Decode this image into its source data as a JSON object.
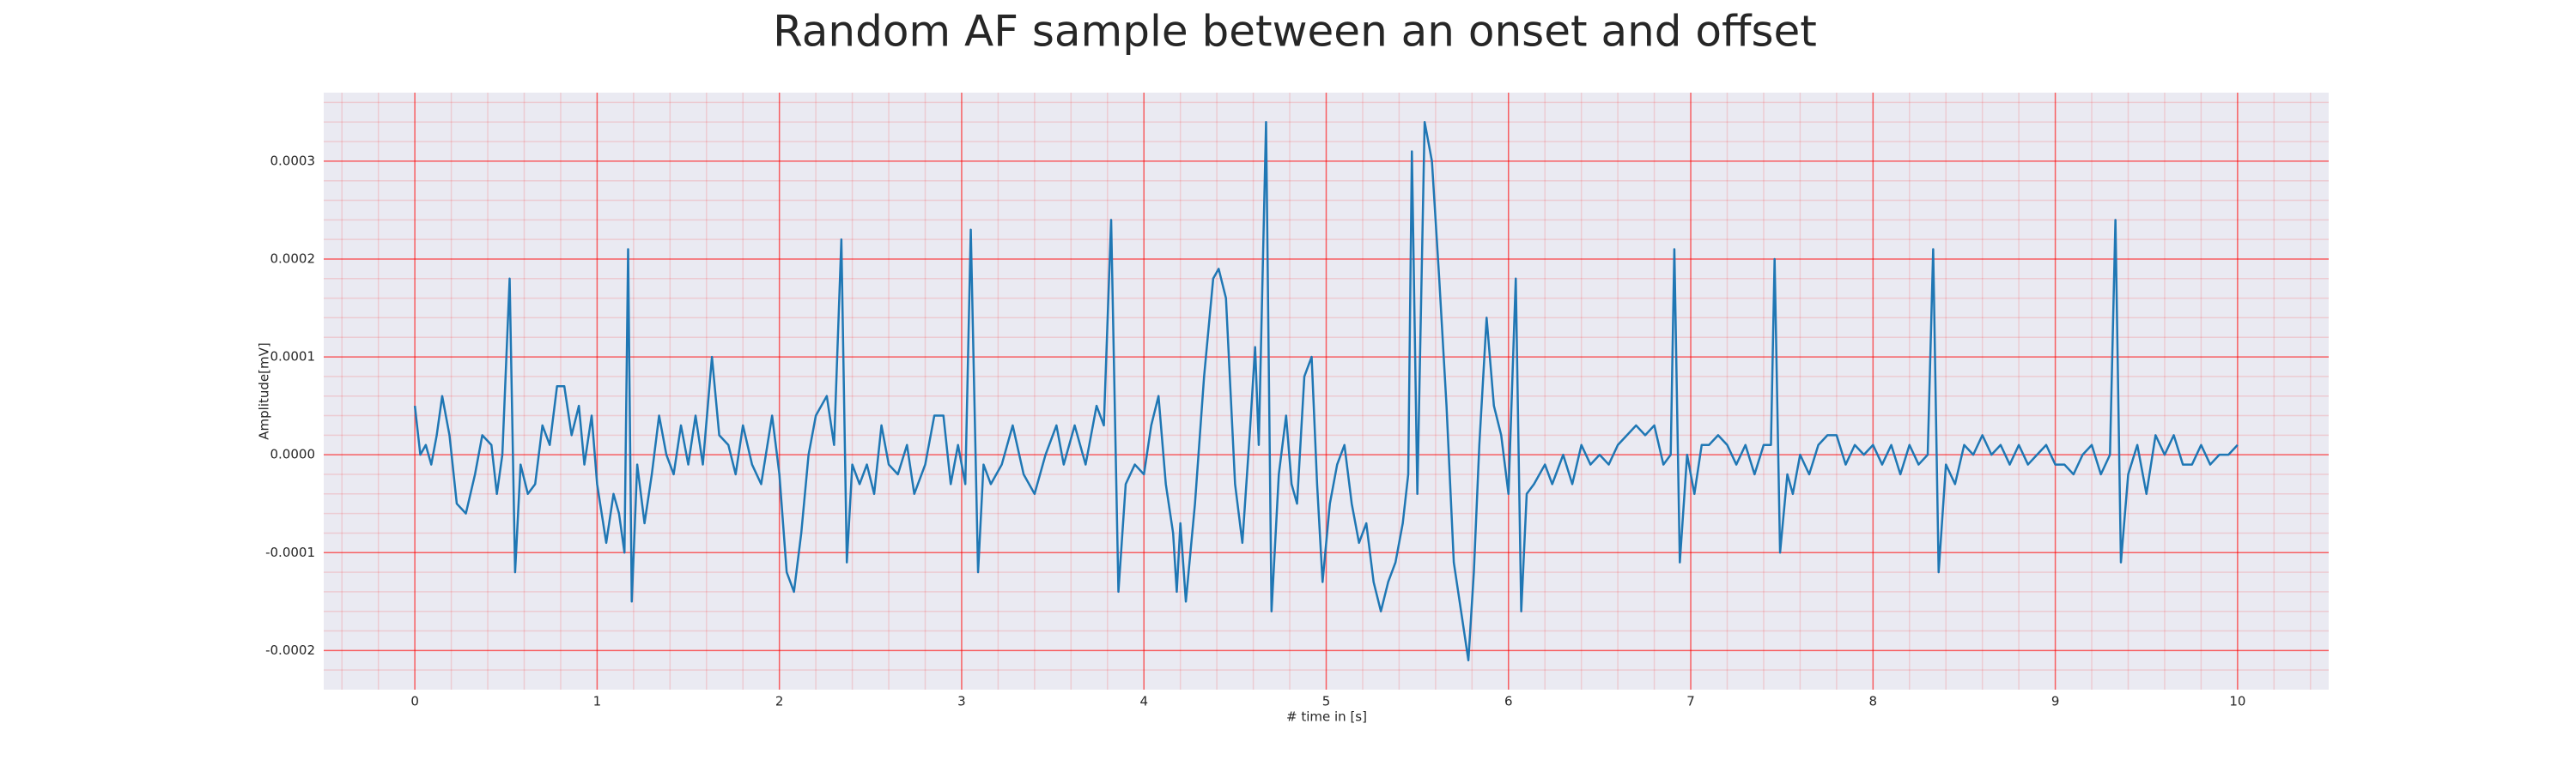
{
  "chart_data": {
    "type": "line",
    "title": "Random AF sample between an onset and offset",
    "xlabel": "# time in [s]",
    "ylabel": "Amplitude[mV]",
    "xlim": [
      -0.5,
      10.5
    ],
    "ylim": [
      -0.00024,
      0.00037
    ],
    "xticks": [
      0,
      1,
      2,
      3,
      4,
      5,
      6,
      7,
      8,
      9,
      10
    ],
    "yticks": [
      -0.0002,
      -0.0001,
      {
        "value": 0,
        "label": "0.0000"
      },
      0.0001,
      0.0002,
      0.0003
    ],
    "grid": true,
    "minor_grid": true,
    "background": "#eaeaf2",
    "grid_color": "#ff0000",
    "series": [
      {
        "color": "#1f77b4",
        "x": [
          0,
          0.03,
          0.06,
          0.09,
          0.12,
          0.15,
          0.19,
          0.23,
          0.28,
          0.33,
          0.37,
          0.42,
          0.45,
          0.48,
          0.52,
          0.55,
          0.58,
          0.62,
          0.66,
          0.7,
          0.74,
          0.78,
          0.82,
          0.86,
          0.9,
          0.93,
          0.97,
          1.0,
          1.05,
          1.09,
          1.12,
          1.15,
          1.17,
          1.19,
          1.22,
          1.26,
          1.3,
          1.34,
          1.38,
          1.42,
          1.46,
          1.5,
          1.54,
          1.58,
          1.63,
          1.67,
          1.72,
          1.76,
          1.8,
          1.85,
          1.9,
          1.96,
          2.0,
          2.04,
          2.08,
          2.12,
          2.16,
          2.2,
          2.26,
          2.3,
          2.34,
          2.37,
          2.4,
          2.44,
          2.48,
          2.52,
          2.56,
          2.6,
          2.65,
          2.7,
          2.74,
          2.8,
          2.85,
          2.9,
          2.94,
          2.98,
          3.02,
          3.05,
          3.09,
          3.12,
          3.16,
          3.22,
          3.28,
          3.34,
          3.4,
          3.46,
          3.52,
          3.56,
          3.62,
          3.68,
          3.74,
          3.78,
          3.82,
          3.86,
          3.9,
          3.95,
          4.0,
          4.04,
          4.08,
          4.12,
          4.16,
          4.18,
          4.2,
          4.23,
          4.28,
          4.33,
          4.38,
          4.41,
          4.45,
          4.5,
          4.54,
          4.58,
          4.61,
          4.63,
          4.67,
          4.7,
          4.74,
          4.78,
          4.81,
          4.84,
          4.88,
          4.92,
          4.95,
          4.98,
          5.02,
          5.06,
          5.1,
          5.14,
          5.18,
          5.22,
          5.26,
          5.3,
          5.34,
          5.38,
          5.42,
          5.45,
          5.47,
          5.5,
          5.54,
          5.58,
          5.62,
          5.66,
          5.7,
          5.74,
          5.78,
          5.81,
          5.84,
          5.88,
          5.92,
          5.96,
          6.0,
          6.04,
          6.07,
          6.1,
          6.14,
          6.2,
          6.24,
          6.3,
          6.35,
          6.4,
          6.45,
          6.5,
          6.55,
          6.6,
          6.65,
          6.7,
          6.75,
          6.8,
          6.85,
          6.89,
          6.91,
          6.94,
          6.98,
          7.02,
          7.06,
          7.1,
          7.15,
          7.2,
          7.25,
          7.3,
          7.35,
          7.4,
          7.44,
          7.46,
          7.49,
          7.53,
          7.56,
          7.6,
          7.65,
          7.7,
          7.75,
          7.8,
          7.85,
          7.9,
          7.95,
          8.0,
          8.05,
          8.1,
          8.15,
          8.2,
          8.25,
          8.3,
          8.33,
          8.36,
          8.4,
          8.45,
          8.5,
          8.55,
          8.6,
          8.65,
          8.7,
          8.75,
          8.8,
          8.85,
          8.9,
          8.95,
          9.0,
          9.05,
          9.1,
          9.15,
          9.2,
          9.25,
          9.3,
          9.33,
          9.36,
          9.4,
          9.45,
          9.5,
          9.55,
          9.6,
          9.65,
          9.7,
          9.75,
          9.8,
          9.85,
          9.9,
          9.95,
          10.0
        ],
        "values": [
          5e-05,
          0,
          1e-05,
          -1e-05,
          2e-05,
          6e-05,
          2e-05,
          -5e-05,
          -6e-05,
          -2e-05,
          2e-05,
          1e-05,
          -4e-05,
          0,
          0.00018,
          -0.00012,
          -1e-05,
          -4e-05,
          -3e-05,
          3e-05,
          1e-05,
          7e-05,
          7e-05,
          2e-05,
          5e-05,
          -1e-05,
          4e-05,
          -3e-05,
          -9e-05,
          -4e-05,
          -6e-05,
          -0.0001,
          0.00021,
          -0.00015,
          -1e-05,
          -7e-05,
          -2e-05,
          4e-05,
          0,
          -2e-05,
          3e-05,
          -1e-05,
          4e-05,
          -1e-05,
          0.0001,
          2e-05,
          1e-05,
          -2e-05,
          3e-05,
          -1e-05,
          -3e-05,
          4e-05,
          -2e-05,
          -0.00012,
          -0.00014,
          -8e-05,
          0,
          4e-05,
          6e-05,
          1e-05,
          0.00022,
          -0.00011,
          -1e-05,
          -3e-05,
          -1e-05,
          -4e-05,
          3e-05,
          -1e-05,
          -2e-05,
          1e-05,
          -4e-05,
          -1e-05,
          4e-05,
          4e-05,
          -3e-05,
          1e-05,
          -3e-05,
          0.00023,
          -0.00012,
          -1e-05,
          -3e-05,
          -1e-05,
          3e-05,
          -2e-05,
          -4e-05,
          0,
          3e-05,
          -1e-05,
          3e-05,
          -1e-05,
          5e-05,
          3e-05,
          0.00024,
          -0.00014,
          -3e-05,
          -1e-05,
          -2e-05,
          3e-05,
          6e-05,
          -3e-05,
          -8e-05,
          -0.00014,
          -7e-05,
          -0.00015,
          -5e-05,
          8e-05,
          0.00018,
          0.00019,
          0.00016,
          -3e-05,
          -9e-05,
          2e-05,
          0.00011,
          1e-05,
          0.00034,
          -0.00016,
          -2e-05,
          4e-05,
          -3e-05,
          -5e-05,
          8e-05,
          0.0001,
          -3e-05,
          -0.00013,
          -5e-05,
          -1e-05,
          1e-05,
          -5e-05,
          -9e-05,
          -7e-05,
          -0.00013,
          -0.00016,
          -0.00013,
          -0.00011,
          -7e-05,
          -2e-05,
          0.00031,
          -4e-05,
          0.00034,
          0.0003,
          0.00018,
          5e-05,
          -0.00011,
          -0.00016,
          -0.00021,
          -0.00012,
          1e-05,
          0.00014,
          5e-05,
          2e-05,
          -4e-05,
          0.00018,
          -0.00016,
          -4e-05,
          -3e-05,
          -1e-05,
          -3e-05,
          0,
          -3e-05,
          1e-05,
          -1e-05,
          0,
          -1e-05,
          1e-05,
          2e-05,
          3e-05,
          2e-05,
          3e-05,
          -1e-05,
          0,
          0.00021,
          -0.00011,
          0,
          -4e-05,
          1e-05,
          1e-05,
          2e-05,
          1e-05,
          -1e-05,
          1e-05,
          -2e-05,
          1e-05,
          1e-05,
          0.0002,
          -0.0001,
          -2e-05,
          -4e-05,
          0,
          -2e-05,
          1e-05,
          2e-05,
          2e-05,
          -1e-05,
          1e-05,
          0,
          1e-05,
          -1e-05,
          1e-05,
          -2e-05,
          1e-05,
          -1e-05,
          0,
          0.00021,
          -0.00012,
          -1e-05,
          -3e-05,
          1e-05,
          0,
          2e-05,
          0,
          1e-05,
          -1e-05,
          1e-05,
          -1e-05,
          0,
          1e-05,
          -1e-05,
          -1e-05,
          -2e-05,
          0,
          1e-05,
          -2e-05,
          0,
          0.00024,
          -0.00011,
          -2e-05,
          1e-05,
          -4e-05,
          2e-05,
          0,
          2e-05,
          -1e-05,
          -1e-05,
          1e-05,
          -1e-05,
          0,
          0,
          1e-05
        ]
      }
    ]
  }
}
